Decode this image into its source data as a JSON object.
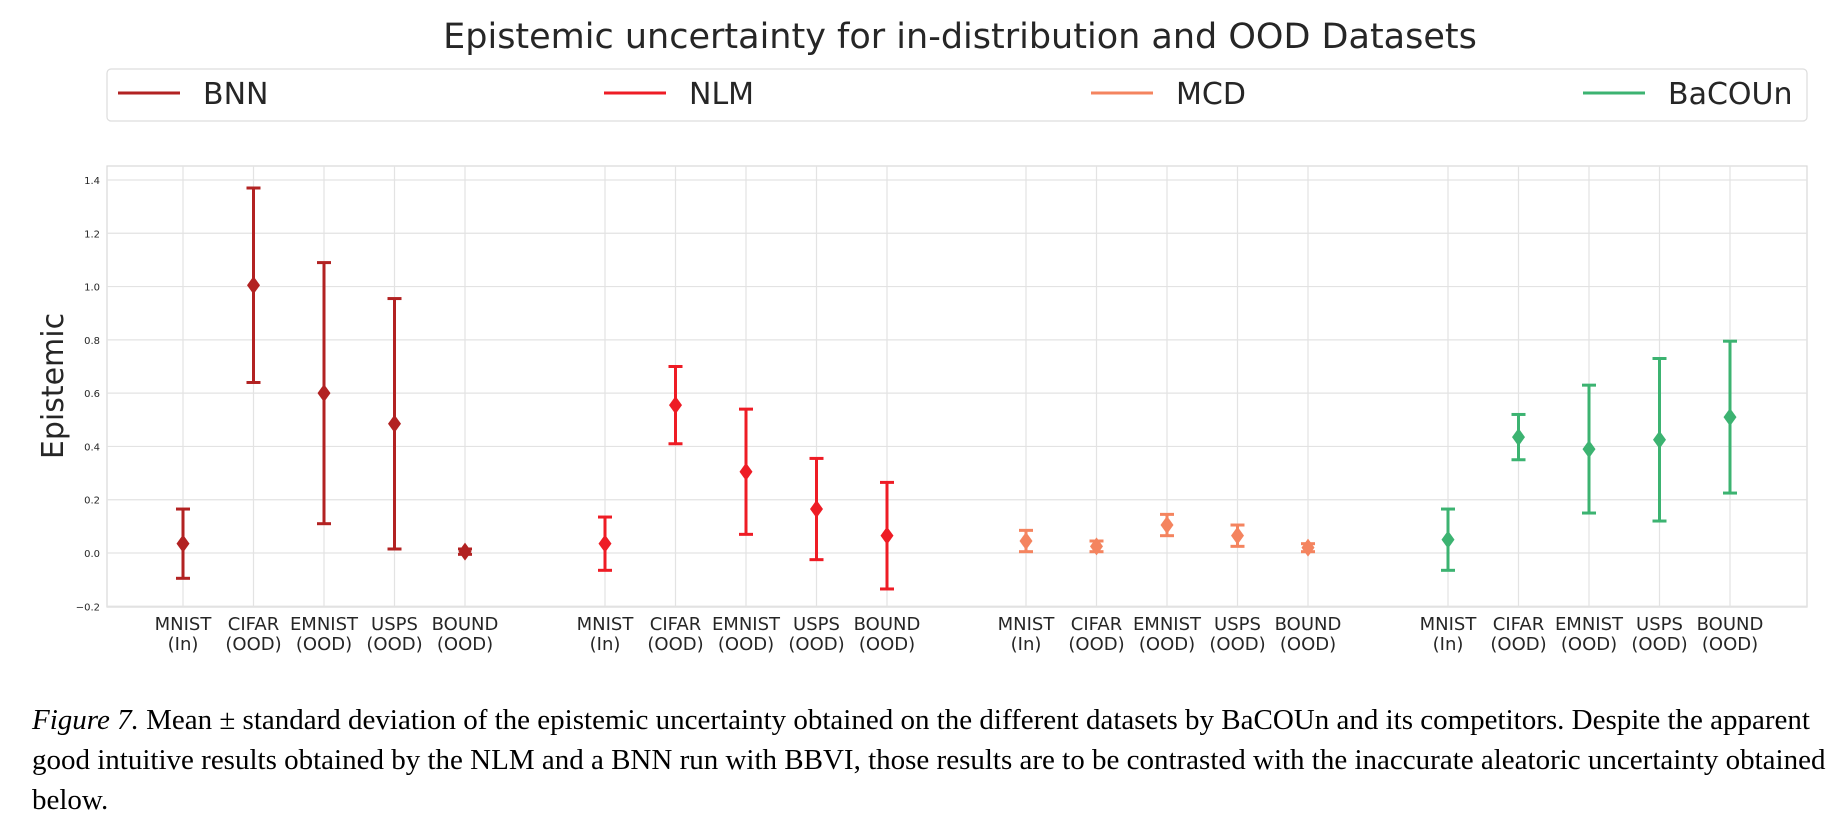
{
  "chart_data": {
    "type": "scatter",
    "title": "Epistemic uncertainty for in-distribution and OOD Datasets",
    "ylabel": "Epistemic",
    "xlabel": "",
    "ylim": [
      -0.2,
      1.45
    ],
    "yticks": [
      "1.4",
      "1.2",
      "1.0",
      "0.8",
      "0.6",
      "0.4",
      "0.2",
      "0.0",
      "−0.2"
    ],
    "ytick_values": [
      1.4,
      1.2,
      1.0,
      0.8,
      0.6,
      0.4,
      0.2,
      0.0,
      -0.2
    ],
    "grid": true,
    "legend_position": "top",
    "categories": [
      {
        "line1": "MNIST",
        "line2": "(In)"
      },
      {
        "line1": "CIFAR",
        "line2": "(OOD)"
      },
      {
        "line1": "EMNIST",
        "line2": "(OOD)"
      },
      {
        "line1": "USPS",
        "line2": "(OOD)"
      },
      {
        "line1": "BOUND",
        "line2": "(OOD)"
      }
    ],
    "series": [
      {
        "name": "BNN",
        "color": "#b22222",
        "mean": [
          0.035,
          1.005,
          0.6,
          0.485,
          0.005
        ],
        "std": [
          0.13,
          0.365,
          0.49,
          0.47,
          0.01
        ]
      },
      {
        "name": "NLM",
        "color": "#ee1c25",
        "mean": [
          0.035,
          0.555,
          0.305,
          0.165,
          0.065
        ],
        "std": [
          0.1,
          0.145,
          0.235,
          0.19,
          0.2
        ]
      },
      {
        "name": "MCD",
        "color": "#f4845f",
        "mean": [
          0.045,
          0.025,
          0.105,
          0.065,
          0.02
        ],
        "std": [
          0.04,
          0.02,
          0.04,
          0.04,
          0.015
        ]
      },
      {
        "name": "BaCOUn",
        "color": "#3cb371",
        "mean": [
          0.05,
          0.435,
          0.39,
          0.425,
          0.51
        ],
        "std": [
          0.115,
          0.085,
          0.24,
          0.305,
          0.285
        ]
      }
    ]
  },
  "caption": {
    "label": "Figure 7.",
    "text": " Mean ± standard deviation of the epistemic uncertainty obtained on the different datasets by BaCOUn and its competitors. Despite the apparent good intuitive results obtained by the NLM and a BNN run with BBVI, those results are to be contrasted with the inaccurate aleatoric uncertainty obtained below."
  }
}
